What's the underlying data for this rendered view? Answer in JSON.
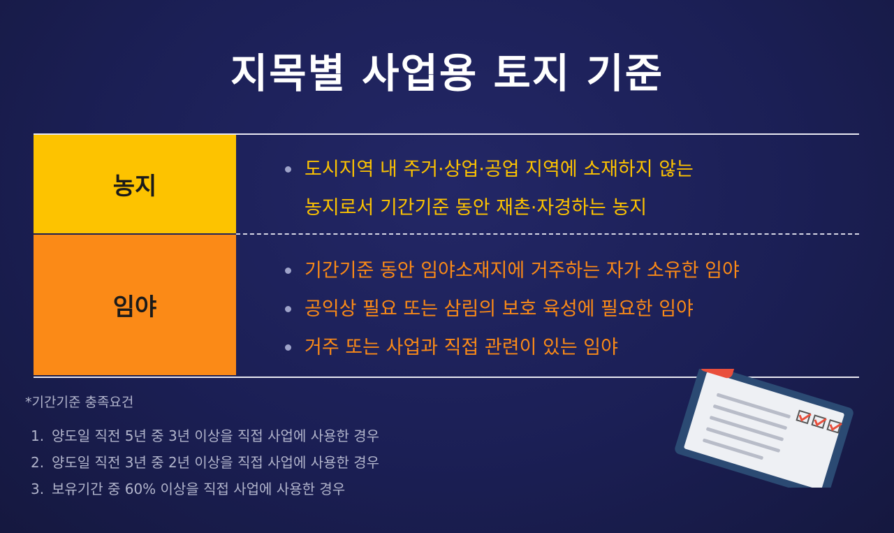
{
  "title": "지목별 사업용 토지 기준",
  "rows": [
    {
      "label": "농지",
      "items": [
        "도시지역 내 주거·상업·공업 지역에 소재하지 않는",
        "농지로서 기간기준 동안 재촌·자경하는 농지"
      ]
    },
    {
      "label": "임야",
      "items": [
        "기간기준 동안 임야소재지에 거주하는 자가 소유한 임야",
        "공익상 필요 또는 삼림의 보호 육성에 필요한 임야",
        "거주 또는 사업과 직접 관련이 있는 임야"
      ]
    }
  ],
  "note": "*기간기준 충족요건",
  "requirements": [
    {
      "num": "1.",
      "text": "양도일 직전 5년 중 3년 이상을 직접 사업에 사용한 경우"
    },
    {
      "num": "2.",
      "text": "양도일 직전 3년 중 2년 이상을 직접 사업에 사용한 경우"
    },
    {
      "num": "3.",
      "text": "보유기간 중 60% 이상을 직접 사업에 사용한 경우"
    }
  ],
  "colors": {
    "background": "#1b1f55",
    "yellow": "#fdc300",
    "orange": "#fb8a17"
  },
  "icons": {
    "clipboard": "clipboard-checklist-icon"
  }
}
